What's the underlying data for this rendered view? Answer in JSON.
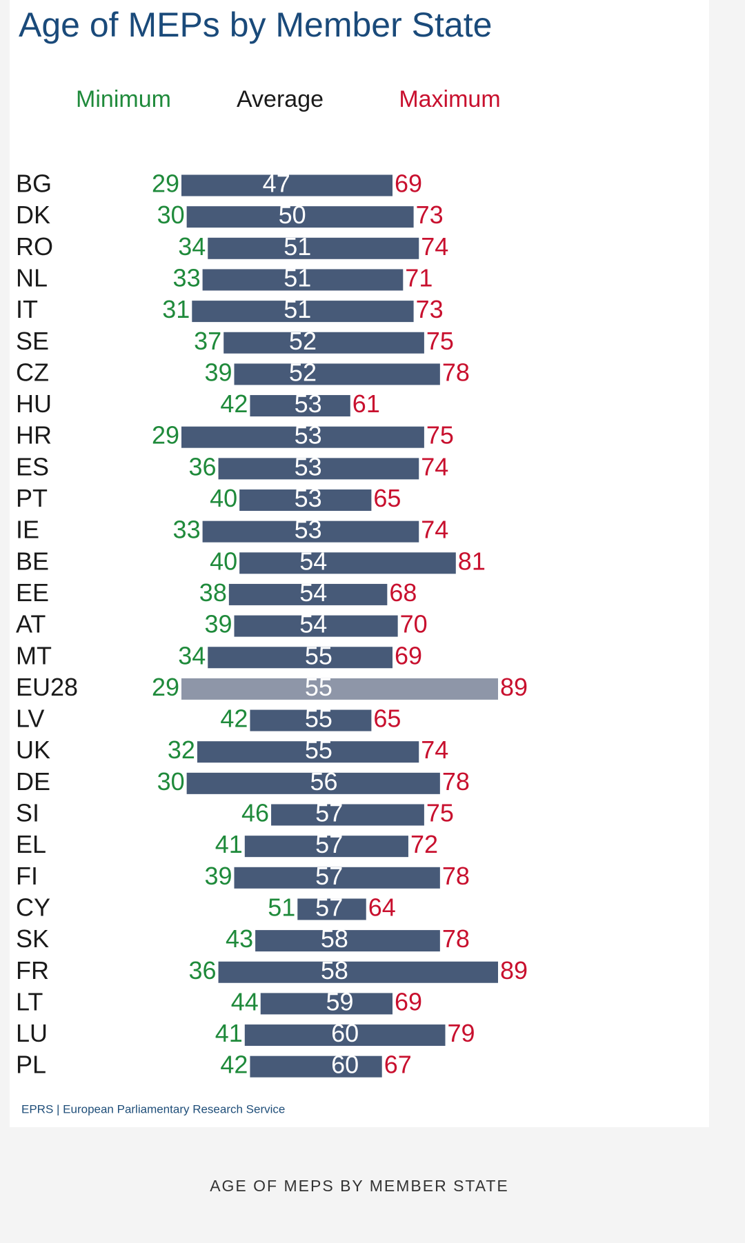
{
  "chart_data": {
    "type": "range-bar",
    "title": "Age of MEPs by Member State",
    "categories": [
      "BG",
      "DK",
      "RO",
      "NL",
      "IT",
      "SE",
      "CZ",
      "HU",
      "HR",
      "ES",
      "PT",
      "IE",
      "BE",
      "EE",
      "AT",
      "MT",
      "EU28",
      "LV",
      "UK",
      "DE",
      "SI",
      "EL",
      "FI",
      "CY",
      "SK",
      "FR",
      "LT",
      "LU",
      "PL"
    ],
    "series": [
      {
        "name": "Minimum",
        "color": "#1f8a3b",
        "values": [
          29,
          30,
          34,
          33,
          31,
          37,
          39,
          42,
          29,
          36,
          40,
          33,
          40,
          38,
          39,
          34,
          29,
          42,
          32,
          30,
          46,
          41,
          39,
          51,
          43,
          36,
          44,
          41,
          42
        ]
      },
      {
        "name": "Average",
        "color": "#1a1a1a",
        "values": [
          47,
          50,
          51,
          51,
          51,
          52,
          52,
          53,
          53,
          53,
          53,
          53,
          54,
          54,
          54,
          55,
          55,
          55,
          55,
          56,
          57,
          57,
          57,
          57,
          58,
          58,
          59,
          60,
          60
        ]
      },
      {
        "name": "Maximum",
        "color": "#c8102e",
        "values": [
          69,
          73,
          74,
          71,
          73,
          75,
          78,
          61,
          75,
          74,
          65,
          74,
          81,
          68,
          70,
          69,
          89,
          65,
          74,
          78,
          75,
          72,
          78,
          64,
          78,
          89,
          69,
          79,
          67
        ]
      }
    ],
    "bar_colors": [
      "#475a78",
      "#475a78",
      "#475a78",
      "#475a78",
      "#475a78",
      "#475a78",
      "#475a78",
      "#475a78",
      "#475a78",
      "#475a78",
      "#475a78",
      "#475a78",
      "#475a78",
      "#475a78",
      "#475a78",
      "#475a78",
      "#8e96a8",
      "#475a78",
      "#475a78",
      "#475a78",
      "#475a78",
      "#475a78",
      "#475a78",
      "#475a78",
      "#475a78",
      "#475a78",
      "#475a78",
      "#475a78",
      "#475a78"
    ],
    "source": "EPRS | European Parliamentary Research Service"
  },
  "caption": "AGE OF MEPS BY MEMBER STATE"
}
